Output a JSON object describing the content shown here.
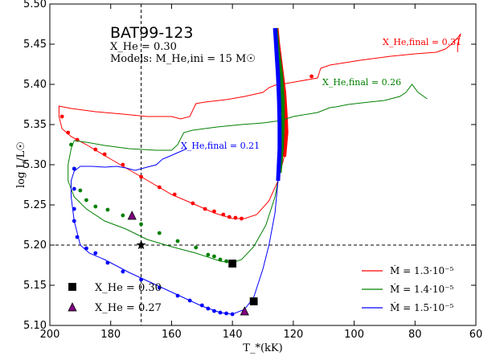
{
  "chart_data": {
    "type": "line",
    "title": "BAT99-123",
    "subtitle_xhe": "X_He = 0.30",
    "subtitle_models": "Models: M_He,ini = 15 M☉",
    "xlabel": "T_*(kK)",
    "ylabel": "log L/L☉",
    "xlim": [
      200,
      60
    ],
    "ylim": [
      5.1,
      5.5
    ],
    "x_ticks": [
      200,
      180,
      160,
      140,
      120,
      100,
      80,
      60
    ],
    "y_ticks": [
      5.1,
      5.15,
      5.2,
      5.25,
      5.3,
      5.35,
      5.4,
      5.45,
      5.5
    ],
    "grid": false,
    "reference_lines": {
      "vertical_x": 170,
      "horizontal_y": 5.2
    },
    "series": [
      {
        "name": "Ṁ = 1.3·10⁻⁵",
        "color": "#ff0000",
        "final_label": "X_He,final = 0.31",
        "track": [
          [
            125.5,
            5.47
          ],
          [
            125,
            5.45
          ],
          [
            124,
            5.42
          ],
          [
            123,
            5.39
          ],
          [
            122.5,
            5.36
          ],
          [
            122.3,
            5.34
          ],
          [
            123,
            5.31
          ],
          [
            125,
            5.28
          ],
          [
            128,
            5.255
          ],
          [
            132,
            5.238
          ],
          [
            136,
            5.233
          ],
          [
            140,
            5.233
          ],
          [
            146,
            5.24
          ],
          [
            152,
            5.25
          ],
          [
            160,
            5.263
          ],
          [
            170,
            5.285
          ],
          [
            180,
            5.307
          ],
          [
            188,
            5.325
          ],
          [
            193,
            5.335
          ],
          [
            196,
            5.345
          ],
          [
            197,
            5.36
          ],
          [
            197,
            5.373
          ],
          [
            193,
            5.37
          ],
          [
            185,
            5.366
          ],
          [
            176,
            5.363
          ],
          [
            168,
            5.36
          ],
          [
            160,
            5.36
          ],
          [
            157,
            5.357
          ],
          [
            154,
            5.36
          ],
          [
            152,
            5.376
          ],
          [
            149,
            5.378
          ],
          [
            142,
            5.381
          ],
          [
            136,
            5.385
          ],
          [
            130,
            5.39
          ],
          [
            128,
            5.396
          ],
          [
            126,
            5.399
          ],
          [
            124,
            5.4
          ],
          [
            118,
            5.404
          ],
          [
            112,
            5.408
          ],
          [
            111,
            5.42
          ],
          [
            108,
            5.424
          ],
          [
            98,
            5.43
          ],
          [
            88,
            5.435
          ],
          [
            80,
            5.438
          ],
          [
            73,
            5.44
          ],
          [
            70,
            5.444
          ],
          [
            68,
            5.45
          ],
          [
            66,
            5.458
          ],
          [
            65,
            5.463
          ],
          [
            66,
            5.45
          ],
          [
            66,
            5.44
          ]
        ],
        "points": [
          [
            114,
            5.41
          ],
          [
            196,
            5.36
          ],
          [
            194,
            5.34
          ],
          [
            191,
            5.331
          ],
          [
            185,
            5.319
          ],
          [
            182,
            5.313
          ],
          [
            176,
            5.3
          ],
          [
            170,
            5.285
          ],
          [
            164,
            5.272
          ],
          [
            159,
            5.263
          ],
          [
            153,
            5.252
          ],
          [
            149,
            5.245
          ],
          [
            146,
            5.242
          ],
          [
            143,
            5.238
          ],
          [
            141,
            5.235
          ],
          [
            139,
            5.234
          ],
          [
            137,
            5.233
          ]
        ]
      },
      {
        "name": "Ṁ = 1.4·10⁻⁵",
        "color": "#008000",
        "final_label": "X_He,final = 0.26",
        "track": [
          [
            125.8,
            5.47
          ],
          [
            125,
            5.44
          ],
          [
            124,
            5.41
          ],
          [
            123.5,
            5.38
          ],
          [
            123.5,
            5.35
          ],
          [
            123.8,
            5.32
          ],
          [
            124.5,
            5.29
          ],
          [
            126,
            5.26
          ],
          [
            129,
            5.225
          ],
          [
            133,
            5.198
          ],
          [
            137,
            5.182
          ],
          [
            140,
            5.178
          ],
          [
            144,
            5.18
          ],
          [
            152,
            5.19
          ],
          [
            160,
            5.198
          ],
          [
            168,
            5.207
          ],
          [
            175,
            5.22
          ],
          [
            182,
            5.23
          ],
          [
            188,
            5.245
          ],
          [
            192,
            5.26
          ],
          [
            194,
            5.28
          ],
          [
            194,
            5.3
          ],
          [
            193,
            5.32
          ],
          [
            192,
            5.33
          ],
          [
            188,
            5.328
          ],
          [
            182,
            5.324
          ],
          [
            174,
            5.32
          ],
          [
            165,
            5.318
          ],
          [
            160,
            5.318
          ],
          [
            158,
            5.325
          ],
          [
            156,
            5.34
          ],
          [
            153,
            5.343
          ],
          [
            145,
            5.347
          ],
          [
            137,
            5.35
          ],
          [
            130,
            5.352
          ],
          [
            124,
            5.355
          ],
          [
            120,
            5.36
          ],
          [
            112,
            5.365
          ],
          [
            108,
            5.371
          ],
          [
            106,
            5.372
          ],
          [
            102,
            5.375
          ],
          [
            95,
            5.378
          ],
          [
            90,
            5.38
          ],
          [
            85,
            5.385
          ],
          [
            83,
            5.39
          ],
          [
            81,
            5.4
          ],
          [
            79,
            5.39
          ],
          [
            76,
            5.382
          ]
        ],
        "points": [
          [
            193,
            5.325
          ],
          [
            192,
            5.295
          ],
          [
            190,
            5.268
          ],
          [
            188,
            5.256
          ],
          [
            185,
            5.248
          ],
          [
            181,
            5.244
          ],
          [
            176,
            5.237
          ],
          [
            170,
            5.226
          ],
          [
            164,
            5.215
          ],
          [
            158,
            5.205
          ],
          [
            152,
            5.197
          ],
          [
            148,
            5.188
          ],
          [
            146,
            5.186
          ],
          [
            144,
            5.182
          ],
          [
            142,
            5.18
          ],
          [
            140,
            5.178
          ]
        ]
      },
      {
        "name": "Ṁ = 1.5·10⁻⁵",
        "color": "#0000ff",
        "final_label": "X_He,final = 0.21",
        "track": [
          [
            126,
            5.47
          ],
          [
            125.5,
            5.44
          ],
          [
            125,
            5.41
          ],
          [
            124.7,
            5.38
          ],
          [
            124.5,
            5.35
          ],
          [
            124.5,
            5.32
          ],
          [
            125,
            5.28
          ],
          [
            126,
            5.24
          ],
          [
            128,
            5.2
          ],
          [
            130,
            5.17
          ],
          [
            133,
            5.135
          ],
          [
            136,
            5.12
          ],
          [
            140,
            5.114
          ],
          [
            144,
            5.116
          ],
          [
            150,
            5.124
          ],
          [
            158,
            5.138
          ],
          [
            166,
            5.152
          ],
          [
            174,
            5.166
          ],
          [
            182,
            5.182
          ],
          [
            187,
            5.19
          ],
          [
            190,
            5.2
          ],
          [
            192,
            5.23
          ],
          [
            193,
            5.26
          ],
          [
            193,
            5.28
          ],
          [
            192,
            5.292
          ],
          [
            190,
            5.298
          ],
          [
            186,
            5.298
          ],
          [
            182,
            5.297
          ],
          [
            178,
            5.298
          ],
          [
            175,
            5.296
          ],
          [
            172,
            5.293
          ],
          [
            168,
            5.297
          ],
          [
            165,
            5.3
          ],
          [
            163,
            5.307
          ],
          [
            161,
            5.31
          ],
          [
            158,
            5.315
          ],
          [
            155,
            5.32
          ]
        ],
        "points": [
          [
            192,
            5.295
          ],
          [
            192,
            5.27
          ],
          [
            192,
            5.245
          ],
          [
            192,
            5.23
          ],
          [
            191,
            5.21
          ],
          [
            188,
            5.196
          ],
          [
            185,
            5.19
          ],
          [
            181,
            5.178
          ],
          [
            176,
            5.167
          ],
          [
            170,
            5.157
          ],
          [
            164,
            5.147
          ],
          [
            158,
            5.137
          ],
          [
            154,
            5.131
          ],
          [
            150,
            5.125
          ],
          [
            148,
            5.121
          ],
          [
            146,
            5.118
          ],
          [
            144,
            5.116
          ],
          [
            142,
            5.115
          ],
          [
            140,
            5.114
          ]
        ]
      }
    ],
    "markers": [
      {
        "shape": "square",
        "x": 140,
        "y": 5.177,
        "color": "#000000"
      },
      {
        "shape": "square",
        "x": 133,
        "y": 5.13,
        "color": "#000000"
      },
      {
        "shape": "triangle",
        "x": 173,
        "y": 5.237,
        "color": "#800080"
      },
      {
        "shape": "triangle",
        "x": 136,
        "y": 5.118,
        "color": "#800080"
      },
      {
        "shape": "star",
        "x": 170,
        "y": 5.2,
        "color": "#000000"
      }
    ],
    "marker_legend": [
      {
        "shape": "square",
        "label": "X_He = 0.30",
        "color": "#000000"
      },
      {
        "shape": "triangle",
        "label": "X_He = 0.27",
        "color": "#800080"
      }
    ],
    "legend_position": "lower-right"
  }
}
